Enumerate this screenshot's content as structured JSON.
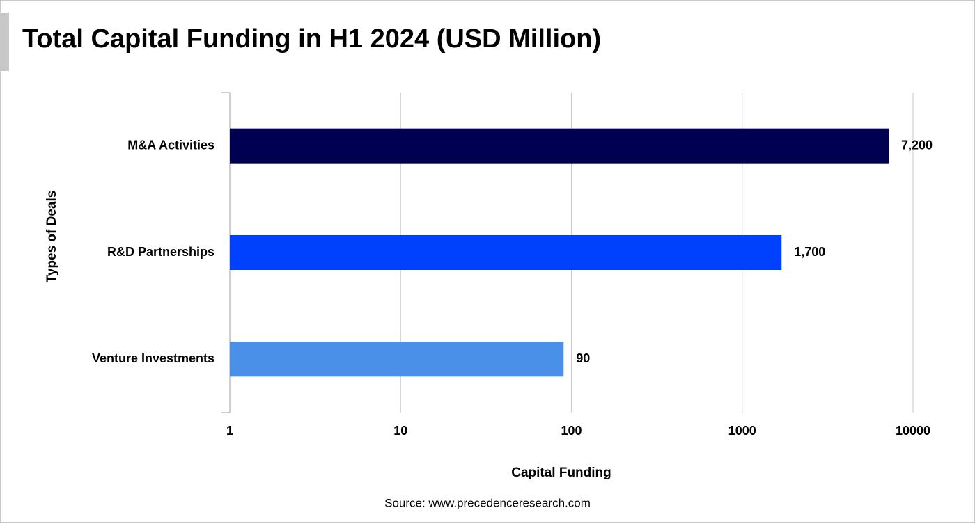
{
  "chart_data": {
    "type": "bar",
    "orientation": "horizontal",
    "title": "Total Capital Funding in H1 2024 (USD Million)",
    "x_label": "Capital Funding",
    "y_label": "Types of Deals",
    "source": "Source: www.precedenceresearch.com",
    "categories": [
      "M&A Activities",
      "R&D Partnerships",
      "Venture Investments"
    ],
    "values": [
      7200,
      1700,
      90
    ],
    "value_labels": [
      "7,200",
      "1,700",
      "90"
    ],
    "colors": [
      "#000050",
      "#0040ff",
      "#4a90e8"
    ],
    "xscale": "log",
    "xlim": [
      1,
      10000
    ],
    "xticks": [
      1,
      10,
      100,
      1000,
      10000
    ],
    "grid": true
  }
}
